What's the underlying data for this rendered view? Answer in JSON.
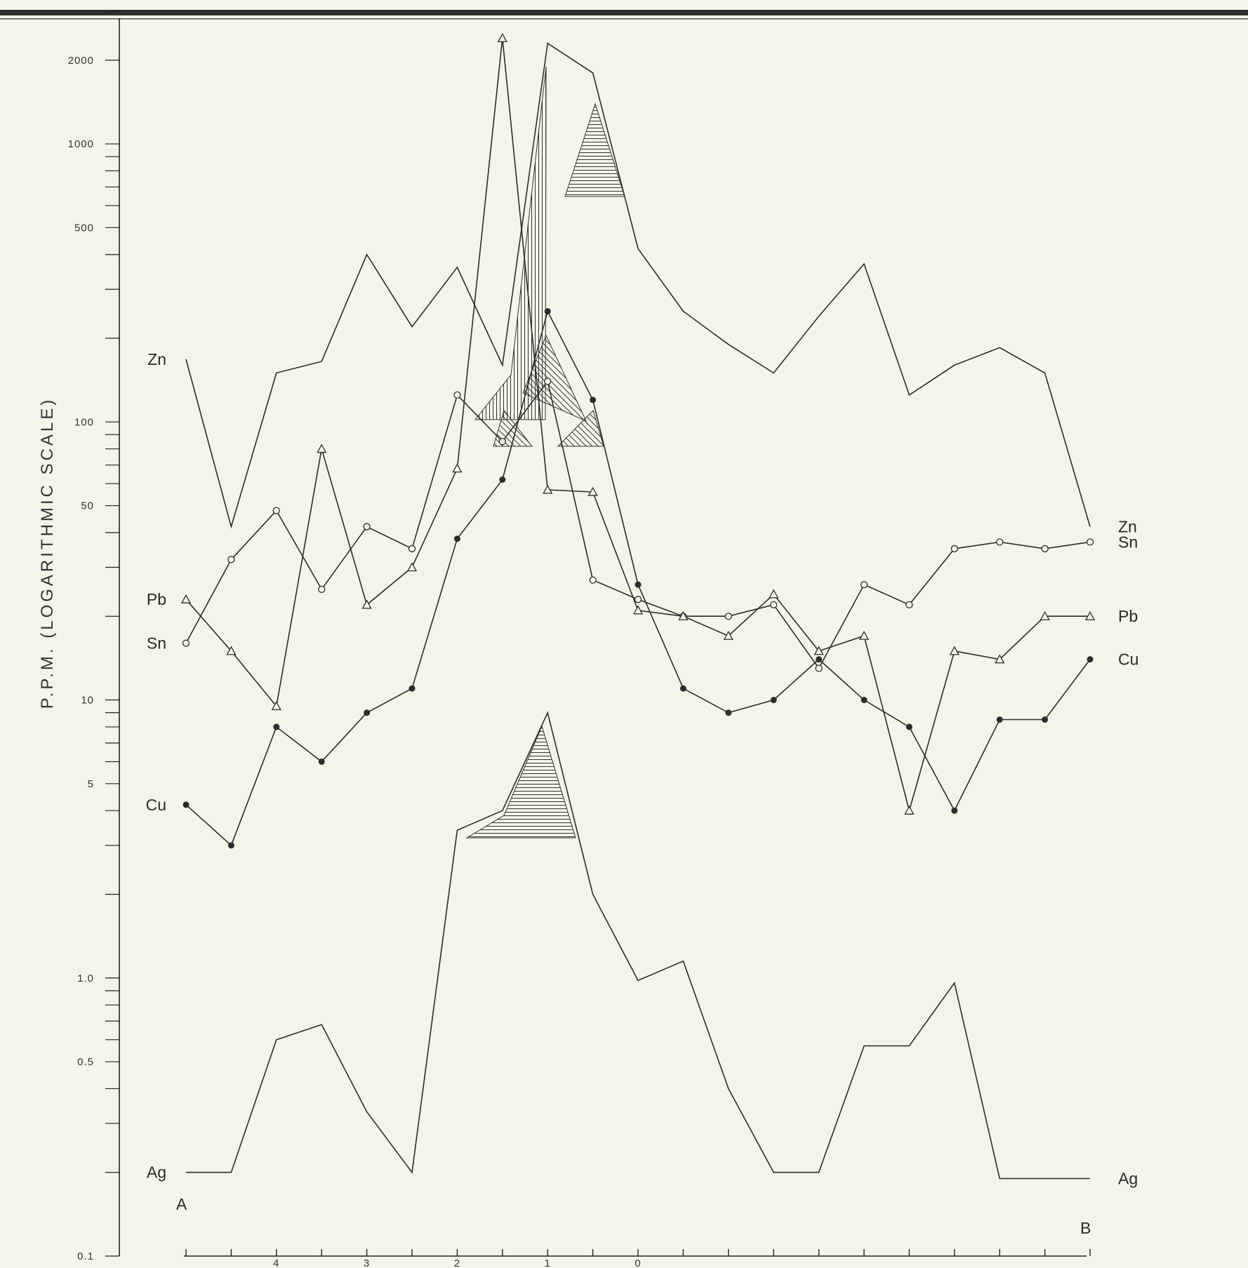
{
  "chart_data": {
    "type": "line",
    "ylabel": "P.P.M.  (LOGARITHMIC SCALE)",
    "yscale": "log",
    "ylim": [
      0.1,
      3000
    ],
    "yticks": [
      {
        "value": 2000,
        "label": "2000"
      },
      {
        "value": 1000,
        "label": "1000"
      },
      {
        "value": 500,
        "label": "500"
      },
      {
        "value": 100,
        "label": "100"
      },
      {
        "value": 50,
        "label": "50"
      },
      {
        "value": 10,
        "label": "10"
      },
      {
        "value": 5,
        "label": "5"
      },
      {
        "value": 1.0,
        "label": "1.0"
      },
      {
        "value": 0.5,
        "label": "0.5"
      },
      {
        "value": 0.1,
        "label": "0.1"
      }
    ],
    "x_endpoints": {
      "start": "A",
      "end": "B"
    },
    "x_tick_labels": [
      {
        "x": 2,
        "label": "4"
      },
      {
        "x": 4,
        "label": "3"
      },
      {
        "x": 6,
        "label": "2"
      },
      {
        "x": 8,
        "label": "1"
      },
      {
        "x": 10,
        "label": "0"
      }
    ],
    "xlim": [
      0,
      20
    ],
    "grid": false,
    "series": [
      {
        "name": "Zn",
        "label_left": "Zn",
        "label_right": "Zn",
        "x": [
          0,
          1,
          2,
          3,
          4,
          5,
          6,
          7,
          8,
          9,
          10,
          11,
          12,
          13,
          14,
          15,
          16,
          17,
          18,
          19,
          20
        ],
        "y": [
          168,
          42,
          150,
          165,
          400,
          220,
          360,
          160,
          2300,
          1800,
          420,
          250,
          190,
          150,
          240,
          370,
          125,
          160,
          185,
          150,
          42
        ]
      },
      {
        "name": "Sn",
        "label_left": "Sn",
        "label_right": "Sn",
        "marker": "open-circle",
        "x": [
          0,
          1,
          2,
          3,
          4,
          5,
          6,
          7,
          8,
          9,
          10,
          11,
          12,
          13,
          14,
          15,
          16,
          17,
          18,
          19,
          20
        ],
        "y": [
          16,
          32,
          48,
          25,
          42,
          35,
          125,
          85,
          140,
          27,
          23,
          20,
          20,
          22,
          13,
          26,
          22,
          35,
          37,
          35,
          37
        ]
      },
      {
        "name": "Pb",
        "label_left": "Pb",
        "label_right": "Pb",
        "marker": "open-triangle",
        "x": [
          0,
          1,
          2,
          3,
          4,
          5,
          6,
          7,
          8,
          9,
          10,
          11,
          12,
          13,
          14,
          15,
          16,
          17,
          18,
          19,
          20
        ],
        "y": [
          23,
          15,
          9.5,
          80,
          22,
          30,
          68,
          2400,
          57,
          56,
          21,
          20,
          17,
          24,
          15,
          17,
          4,
          15,
          14,
          20,
          20
        ]
      },
      {
        "name": "Cu",
        "label_left": "Cu",
        "label_right": "Cu",
        "marker": "filled-circle",
        "x": [
          0,
          1,
          2,
          3,
          4,
          5,
          6,
          7,
          8,
          9,
          10,
          11,
          12,
          13,
          14,
          15,
          16,
          17,
          18,
          19,
          20
        ],
        "y": [
          4.2,
          3,
          8,
          6,
          9,
          11,
          38,
          62,
          250,
          120,
          26,
          11,
          9,
          10,
          14,
          10,
          8,
          4,
          8.5,
          8.5,
          14
        ]
      },
      {
        "name": "Ag",
        "label_left": "Ag",
        "label_right": "Ag",
        "x": [
          0,
          1,
          2,
          3,
          4,
          5,
          6,
          7,
          8,
          9,
          10,
          11,
          12,
          13,
          14,
          15,
          16,
          17,
          18,
          19,
          20
        ],
        "y": [
          0.2,
          0.2,
          0.6,
          0.68,
          0.33,
          0.2,
          3.4,
          4,
          9,
          2,
          0.98,
          1.15,
          0.4,
          0.2,
          0.2,
          0.57,
          0.57,
          0.96,
          0.19,
          0.19,
          0.19
        ]
      }
    ]
  }
}
